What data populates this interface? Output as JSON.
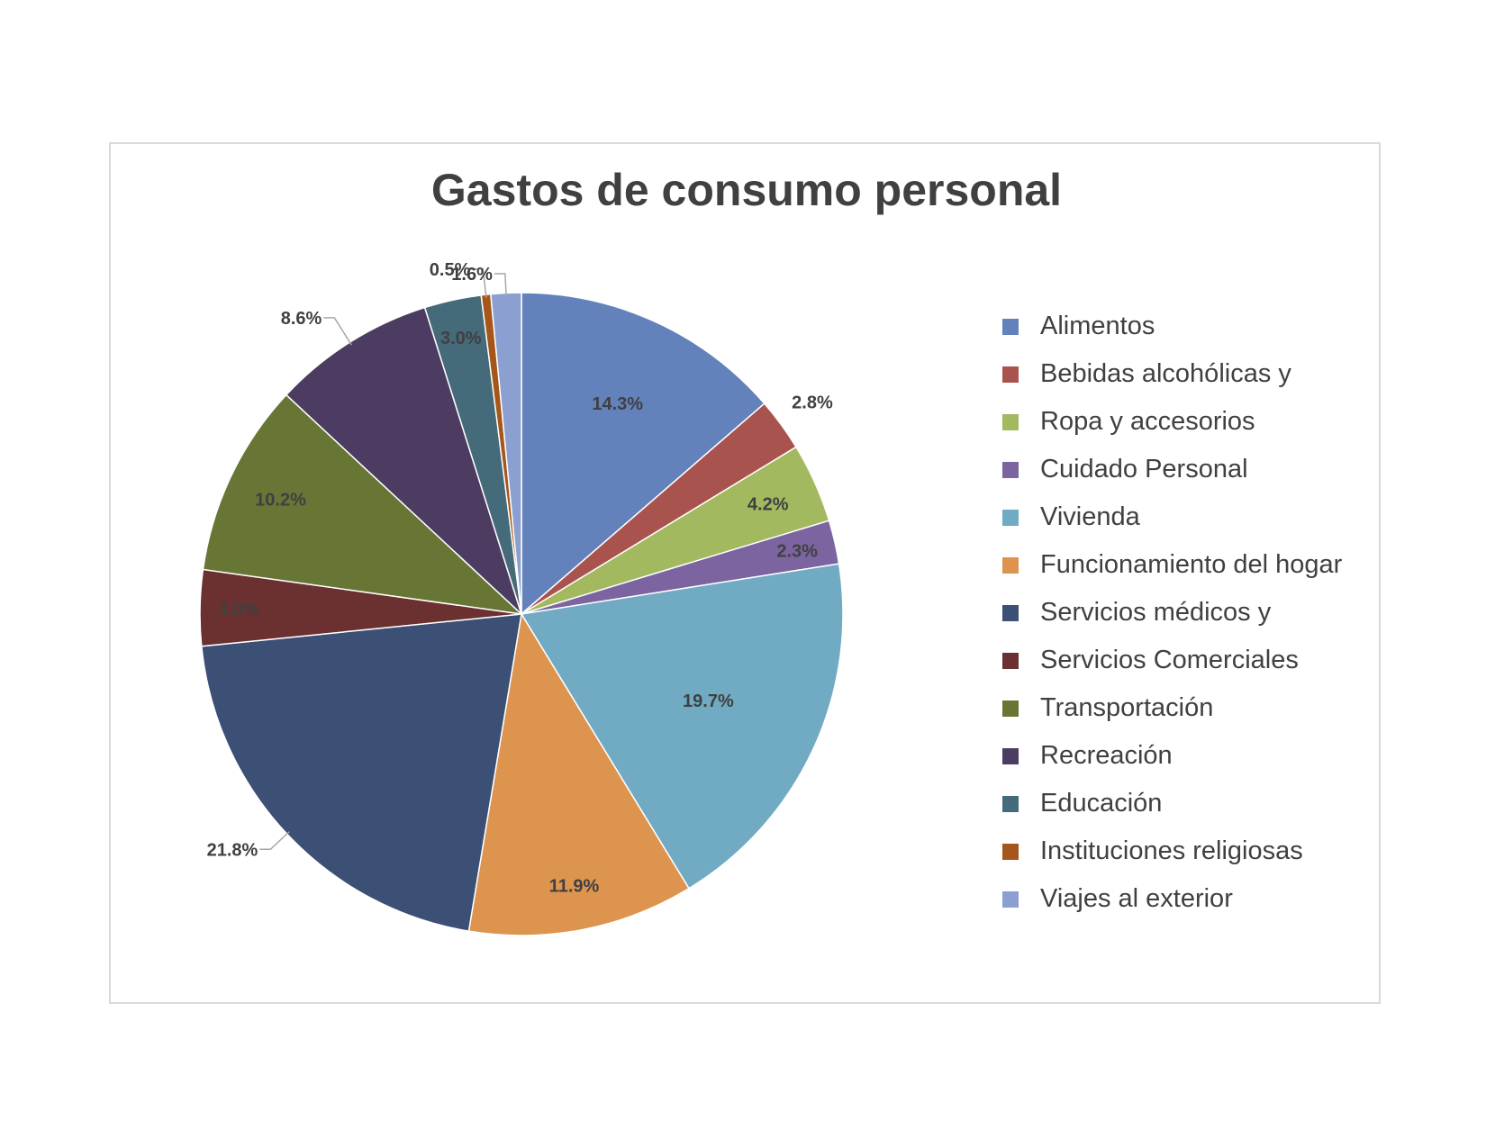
{
  "chart_data": {
    "type": "pie",
    "title": "Gastos de consumo personal",
    "legend_position": "right",
    "categories": [
      "Alimentos",
      "Bebidas alcohólicas y",
      "Ropa y accesorios",
      "Cuidado Personal",
      "Vivienda",
      "Funcionamiento del hogar",
      "Servicios médicos y",
      "Servicios Comerciales",
      "Transportación",
      "Recreación",
      "Educación",
      "Instituciones religiosas",
      "Viajes al exterior"
    ],
    "values": [
      14.3,
      2.8,
      4.2,
      2.3,
      19.7,
      11.9,
      21.8,
      4.0,
      10.2,
      8.6,
      3.0,
      0.5,
      1.6
    ],
    "labels": [
      "14.3%",
      "2.8%",
      "4.2%",
      "2.3%",
      "19.7%",
      "11.9%",
      "21.8%",
      "4.0%",
      "10.2%",
      "8.6%",
      "3.0%",
      "0.5%",
      "1.6%"
    ],
    "colors": [
      "#6381bb",
      "#a9534f",
      "#a2b95f",
      "#7b64a0",
      "#71aac3",
      "#dd944f",
      "#3c4f75",
      "#6b3030",
      "#677535",
      "#4c3c61",
      "#456a7a",
      "#a5561a",
      "#8b9fd0"
    ]
  }
}
